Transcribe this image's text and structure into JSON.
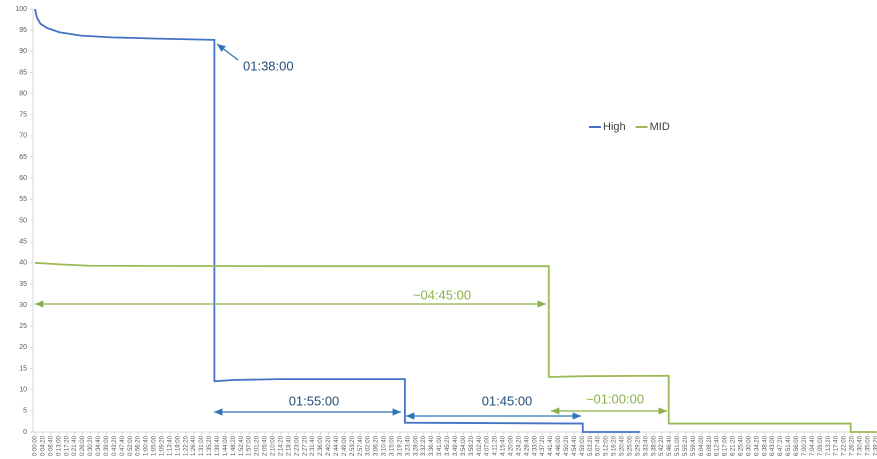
{
  "chart_data": {
    "type": "line",
    "ylim": [
      0,
      100
    ],
    "yticks": [
      0,
      5,
      10,
      15,
      20,
      25,
      30,
      35,
      40,
      45,
      50,
      55,
      60,
      65,
      70,
      75,
      80,
      85,
      90,
      95,
      100
    ],
    "xlim": [
      0,
      27600
    ],
    "xticks": [
      {
        "value": 0,
        "label": "0:00:00"
      },
      {
        "value": 260,
        "label": "0:04:20"
      },
      {
        "value": 520,
        "label": "0:08:40"
      },
      {
        "value": 780,
        "label": "0:13:00"
      },
      {
        "value": 1040,
        "label": "0:17:20"
      },
      {
        "value": 1300,
        "label": "0:21:40"
      },
      {
        "value": 1560,
        "label": "0:26:00"
      },
      {
        "value": 1820,
        "label": "0:30:20"
      },
      {
        "value": 2080,
        "label": "0:34:40"
      },
      {
        "value": 2340,
        "label": "0:39:00"
      },
      {
        "value": 2600,
        "label": "0:43:20"
      },
      {
        "value": 2860,
        "label": "0:47:40"
      },
      {
        "value": 3120,
        "label": "0:52:00"
      },
      {
        "value": 3380,
        "label": "0:56:20"
      },
      {
        "value": 3640,
        "label": "1:00:40"
      },
      {
        "value": 3900,
        "label": "1:05:00"
      },
      {
        "value": 4160,
        "label": "1:09:20"
      },
      {
        "value": 4420,
        "label": "1:13:40"
      },
      {
        "value": 4680,
        "label": "1:18:00"
      },
      {
        "value": 4940,
        "label": "1:22:20"
      },
      {
        "value": 5200,
        "label": "1:26:40"
      },
      {
        "value": 5460,
        "label": "1:31:00"
      },
      {
        "value": 5720,
        "label": "1:35:20"
      },
      {
        "value": 5980,
        "label": "1:39:40"
      },
      {
        "value": 6240,
        "label": "1:44:00"
      },
      {
        "value": 6500,
        "label": "1:48:20"
      },
      {
        "value": 6760,
        "label": "1:52:40"
      },
      {
        "value": 7020,
        "label": "1:57:00"
      },
      {
        "value": 7280,
        "label": "2:01:20"
      },
      {
        "value": 7540,
        "label": "2:05:40"
      },
      {
        "value": 7800,
        "label": "2:10:00"
      },
      {
        "value": 8060,
        "label": "2:14:20"
      },
      {
        "value": 8320,
        "label": "2:18:40"
      },
      {
        "value": 8580,
        "label": "2:23:00"
      },
      {
        "value": 8840,
        "label": "2:27:20"
      },
      {
        "value": 9100,
        "label": "2:31:40"
      },
      {
        "value": 9360,
        "label": "2:36:00"
      },
      {
        "value": 9620,
        "label": "2:40:20"
      },
      {
        "value": 9880,
        "label": "2:44:40"
      },
      {
        "value": 10140,
        "label": "2:49:00"
      },
      {
        "value": 10400,
        "label": "2:53:20"
      },
      {
        "value": 10660,
        "label": "2:57:40"
      },
      {
        "value": 10920,
        "label": "3:02:00"
      },
      {
        "value": 11180,
        "label": "3:06:20"
      },
      {
        "value": 11440,
        "label": "3:10:40"
      },
      {
        "value": 11700,
        "label": "3:15:00"
      },
      {
        "value": 11960,
        "label": "3:19:20"
      },
      {
        "value": 12220,
        "label": "3:23:40"
      },
      {
        "value": 12480,
        "label": "3:28:00"
      },
      {
        "value": 12740,
        "label": "3:32:20"
      },
      {
        "value": 13000,
        "label": "3:36:40"
      },
      {
        "value": 13260,
        "label": "3:41:00"
      },
      {
        "value": 13520,
        "label": "3:45:20"
      },
      {
        "value": 13780,
        "label": "3:49:40"
      },
      {
        "value": 14040,
        "label": "3:54:00"
      },
      {
        "value": 14300,
        "label": "3:58:20"
      },
      {
        "value": 14560,
        "label": "4:02:40"
      },
      {
        "value": 14820,
        "label": "4:07:00"
      },
      {
        "value": 15080,
        "label": "4:11:20"
      },
      {
        "value": 15340,
        "label": "4:15:40"
      },
      {
        "value": 15600,
        "label": "4:20:00"
      },
      {
        "value": 15860,
        "label": "4:24:20"
      },
      {
        "value": 16120,
        "label": "4:28:40"
      },
      {
        "value": 16380,
        "label": "4:33:00"
      },
      {
        "value": 16640,
        "label": "4:37:20"
      },
      {
        "value": 16900,
        "label": "4:41:40"
      },
      {
        "value": 17160,
        "label": "4:46:00"
      },
      {
        "value": 17420,
        "label": "4:50:20"
      },
      {
        "value": 17680,
        "label": "4:54:40"
      },
      {
        "value": 17940,
        "label": "4:59:00"
      },
      {
        "value": 18200,
        "label": "5:03:20"
      },
      {
        "value": 18460,
        "label": "5:07:40"
      },
      {
        "value": 18720,
        "label": "5:12:00"
      },
      {
        "value": 18980,
        "label": "5:16:20"
      },
      {
        "value": 19240,
        "label": "5:20:40"
      },
      {
        "value": 19500,
        "label": "5:25:00"
      },
      {
        "value": 19760,
        "label": "5:29:20"
      },
      {
        "value": 20020,
        "label": "5:33:40"
      },
      {
        "value": 20280,
        "label": "5:38:00"
      },
      {
        "value": 20540,
        "label": "5:42:20"
      },
      {
        "value": 20800,
        "label": "5:46:40"
      },
      {
        "value": 21060,
        "label": "5:51:00"
      },
      {
        "value": 21320,
        "label": "5:55:20"
      },
      {
        "value": 21580,
        "label": "5:59:40"
      },
      {
        "value": 21840,
        "label": "6:04:00"
      },
      {
        "value": 22100,
        "label": "6:08:20"
      },
      {
        "value": 22360,
        "label": "6:12:40"
      },
      {
        "value": 22620,
        "label": "6:17:00"
      },
      {
        "value": 22880,
        "label": "6:21:20"
      },
      {
        "value": 23140,
        "label": "6:25:40"
      },
      {
        "value": 23400,
        "label": "6:30:00"
      },
      {
        "value": 23660,
        "label": "6:34:20"
      },
      {
        "value": 23920,
        "label": "6:38:40"
      },
      {
        "value": 24180,
        "label": "6:43:00"
      },
      {
        "value": 24440,
        "label": "6:47:20"
      },
      {
        "value": 24700,
        "label": "6:51:40"
      },
      {
        "value": 24960,
        "label": "6:56:00"
      },
      {
        "value": 25220,
        "label": "7:00:20"
      },
      {
        "value": 25480,
        "label": "7:04:40"
      },
      {
        "value": 25740,
        "label": "7:09:00"
      },
      {
        "value": 26000,
        "label": "7:13:20"
      },
      {
        "value": 26260,
        "label": "7:17:40"
      },
      {
        "value": 26520,
        "label": "7:22:00"
      },
      {
        "value": 26780,
        "label": "7:26:20"
      },
      {
        "value": 27040,
        "label": "7:30:40"
      },
      {
        "value": 27300,
        "label": "7:35:00"
      },
      {
        "value": 27560,
        "label": "7:39:20"
      }
    ],
    "series": [
      {
        "name": "High",
        "color": "#4472c4",
        "x": [
          0,
          60,
          180,
          400,
          800,
          1500,
          2500,
          4000,
          5880,
          5880,
          6500,
          8000,
          12124,
          12124,
          17955,
          17955,
          19823
        ],
        "values": [
          100,
          98,
          96.5,
          95.5,
          94.5,
          93.7,
          93.3,
          93,
          92.7,
          12,
          12.3,
          12.5,
          12.5,
          2.2,
          2,
          0,
          0
        ]
      },
      {
        "name": "MID",
        "color": "#9bbb59",
        "x": [
          0,
          900,
          1800,
          8000,
          16842,
          16842,
          18000,
          20773,
          20773,
          26737,
          26737,
          27590
        ],
        "values": [
          40,
          39.6,
          39.3,
          39.2,
          39.2,
          13,
          13.2,
          13.3,
          2,
          2,
          0,
          0
        ]
      }
    ],
    "legend": "top-right",
    "annotations": [
      "01:38:00",
      "01:55:00",
      "01:45:00",
      "~04:45:00",
      "~01:00:00"
    ]
  }
}
